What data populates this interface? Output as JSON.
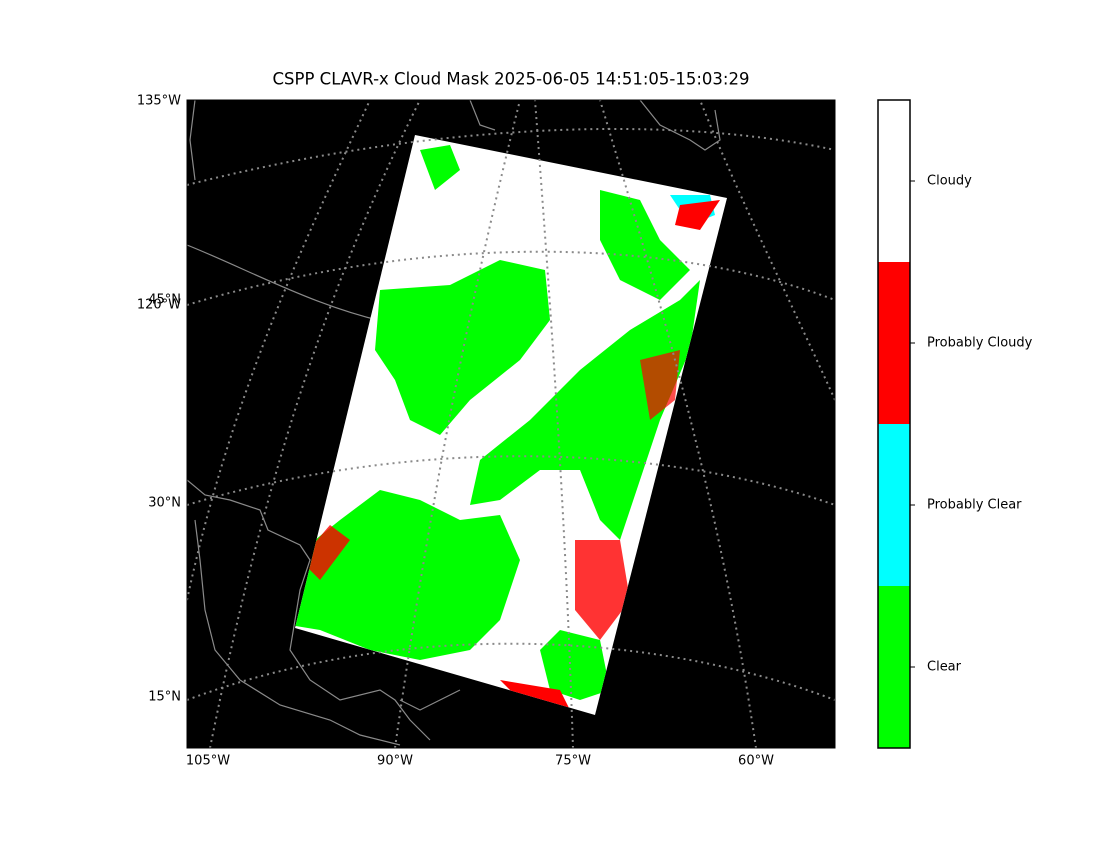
{
  "title": "CSPP CLAVR-x Cloud Mask 2025-06-05 14:51:05-15:03:29",
  "map": {
    "left_labels": [
      "135°W",
      "120°W",
      "45°N",
      "30°N",
      "15°N"
    ],
    "bottom_labels": [
      "105°W",
      "90°W",
      "75°W",
      "60°W"
    ]
  },
  "colorbar": {
    "classes": [
      {
        "label": "Cloudy",
        "color": "#ffffff"
      },
      {
        "label": "Probably Cloudy",
        "color": "#ff0000"
      },
      {
        "label": "Probably Clear",
        "color": "#00ffff"
      },
      {
        "label": "Clear",
        "color": "#00ff00"
      }
    ]
  }
}
